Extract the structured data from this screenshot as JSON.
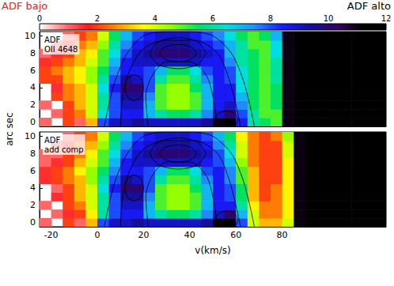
{
  "chart_data": {
    "type": "heatmap",
    "xlabel": "v(km/s)",
    "ylabel": "arc sec",
    "xlim": [
      -25,
      125
    ],
    "xticks": [
      -20,
      0,
      20,
      40,
      60,
      80
    ],
    "ylim": [
      -0.5,
      10.5
    ],
    "yticks": [
      0,
      2,
      4,
      6,
      8,
      10
    ],
    "grid": false,
    "colorbar": {
      "lim": [
        0,
        12
      ],
      "ticks": [
        0,
        2,
        4,
        6,
        8,
        10,
        12
      ],
      "low_label": "ADF bajo",
      "high_label": "ADF alto"
    },
    "x": [
      -22.5,
      -17.5,
      -12.5,
      -7.5,
      -2.5,
      2.5,
      7.5,
      12.5,
      17.5,
      22.5,
      27.5,
      32.5,
      37.5,
      42.5,
      47.5,
      52.5,
      57.5,
      62.5,
      67.5,
      72.5,
      77.5,
      82.5,
      87.5,
      92.5,
      97.5,
      102.5,
      107.5,
      112.5,
      117.5,
      122.5
    ],
    "y": [
      0,
      1,
      2,
      3,
      4,
      5,
      6,
      7,
      8,
      9,
      10
    ],
    "contours": [
      {
        "x": [
          3,
          5,
          8,
          13,
          20,
          30,
          40,
          50,
          58,
          63,
          66,
          68
        ],
        "y": [
          -0.5,
          2,
          5,
          8,
          10,
          10.5,
          10.5,
          10,
          8,
          5,
          2,
          -0.5
        ]
      },
      {
        "x": [
          10,
          11,
          14,
          20,
          30,
          42,
          52,
          57,
          60,
          62
        ],
        "y": [
          -0.5,
          3,
          6,
          8.5,
          9.5,
          9.5,
          8,
          5,
          2,
          -0.5
        ]
      },
      {
        "x": [
          22,
          21,
          24,
          30,
          40,
          47,
          50,
          52
        ],
        "y": [
          -0.5,
          3,
          5.5,
          7,
          7,
          5.5,
          3,
          -0.5
        ]
      },
      {
        "x": [
          20,
          18.8,
          16,
          13.2,
          12,
          13.2,
          16,
          18.8,
          20
        ],
        "y": [
          4,
          5.1,
          5.5,
          5.1,
          4,
          2.9,
          2.5,
          2.9,
          4
        ]
      },
      {
        "x": [
          47,
          43.5,
          35,
          26.5,
          23,
          26.5,
          35,
          43.5,
          47
        ],
        "y": [
          8,
          9.3,
          9.8,
          9.3,
          8,
          6.7,
          6.2,
          6.7,
          8
        ]
      },
      {
        "x": [
          43,
          40.7,
          35,
          29.3,
          27,
          29.3,
          35,
          40.7,
          43
        ],
        "y": [
          8,
          8.7,
          9,
          8.7,
          8,
          7.3,
          7,
          7.3,
          8
        ]
      },
      {
        "x": [
          61,
          59.5,
          56,
          52.5,
          51,
          52.5,
          56,
          59.5,
          61
        ],
        "y": [
          0.3,
          1,
          1.3,
          1,
          0.3,
          -0.4,
          -0.5,
          -0.4,
          0.3
        ]
      }
    ],
    "panels": [
      {
        "annotations": [
          "ADF",
          "OII 4648"
        ],
        "values": [
          [
            1,
            null,
            2,
            1,
            3,
            8,
            9,
            9,
            9.5,
            9,
            9,
            9,
            9,
            9,
            9.5,
            11,
            11.5,
            8.5,
            6,
            5.5,
            5,
            11,
            12,
            12,
            12,
            12,
            12,
            12,
            12,
            12
          ],
          [
            null,
            1,
            2,
            2.5,
            4,
            6.5,
            8,
            8.5,
            8.5,
            7,
            6,
            5.5,
            5.5,
            6,
            7.5,
            9,
            10,
            8,
            6,
            5,
            5,
            11,
            12,
            12,
            12,
            12,
            12,
            12,
            12,
            12
          ],
          [
            1,
            null,
            2,
            3,
            4,
            6,
            8,
            9,
            9,
            7,
            5,
            4.5,
            4.5,
            5,
            7,
            8.5,
            9,
            7.5,
            5.5,
            5,
            5.5,
            11,
            12,
            12,
            12,
            12,
            12,
            12,
            12,
            12
          ],
          [
            null,
            2,
            2.5,
            3,
            4,
            6,
            8,
            9.5,
            9.5,
            7.5,
            5,
            4.5,
            4.5,
            5,
            7,
            8.5,
            8.5,
            7,
            5.5,
            5,
            5.5,
            11,
            12,
            12,
            12,
            12,
            12,
            12,
            12,
            12
          ],
          [
            null,
            1.5,
            2.5,
            3,
            4,
            6.5,
            8.5,
            10,
            10,
            8,
            5,
            4.5,
            4.5,
            5.5,
            7,
            8.5,
            8.5,
            6.5,
            5.5,
            5,
            5.5,
            11,
            12,
            12,
            12,
            12,
            12,
            12,
            12,
            12
          ],
          [
            2,
            2,
            3,
            3.5,
            4.5,
            6,
            8,
            9.5,
            9,
            8,
            6,
            5,
            5,
            6,
            7.5,
            8.5,
            8,
            6.5,
            5.5,
            5,
            6,
            11,
            12,
            12,
            12,
            12,
            12,
            12,
            12,
            12
          ],
          [
            2,
            2.5,
            3,
            3.5,
            4.5,
            5.5,
            7.5,
            8.5,
            8.5,
            8,
            7,
            5.5,
            5.5,
            6.5,
            8,
            8.5,
            8,
            6.5,
            5.5,
            5,
            6,
            11,
            12,
            12,
            12,
            12,
            12,
            12,
            12,
            12
          ],
          [
            1.5,
            2,
            2.5,
            3,
            4,
            5,
            7,
            8.5,
            9,
            9,
            9,
            9,
            9,
            9,
            8.5,
            8.5,
            7.5,
            6,
            5.5,
            5,
            6,
            11,
            12,
            12,
            12,
            12,
            12,
            12,
            12,
            12
          ],
          [
            1,
            1.5,
            2,
            3,
            3.5,
            5,
            6.5,
            8,
            9,
            9.5,
            10,
            10,
            10,
            9.5,
            9,
            8.5,
            7,
            6,
            5.5,
            5,
            6.5,
            11,
            12,
            12,
            12,
            12,
            12,
            12,
            12,
            12
          ],
          [
            null,
            1,
            1.5,
            2.5,
            3,
            4.5,
            6,
            7.5,
            8.5,
            9,
            9.5,
            9.5,
            9.5,
            9,
            8.5,
            8,
            7,
            6,
            5,
            5,
            6.5,
            11,
            12,
            12,
            12,
            12,
            12,
            12,
            12,
            12
          ],
          [
            null,
            null,
            1,
            2,
            2.5,
            4,
            5.5,
            7,
            8,
            8.5,
            9,
            9,
            9,
            8.5,
            8,
            7.5,
            6.5,
            5.5,
            5,
            5.5,
            7,
            11,
            12,
            12,
            12,
            12,
            12,
            12,
            12,
            12
          ]
        ]
      },
      {
        "annotations": [
          "ADF",
          "add comp"
        ],
        "values": [
          [
            1,
            null,
            2,
            1,
            3,
            8,
            9,
            9,
            9.5,
            9,
            9,
            9,
            9,
            9,
            9.5,
            11,
            11.5,
            8,
            4,
            3,
            3,
            4,
            11,
            12,
            12,
            12,
            12,
            12,
            12,
            12
          ],
          [
            null,
            1,
            1.5,
            2,
            3.5,
            6,
            8,
            8.5,
            8.5,
            7,
            6,
            5.5,
            5.5,
            6,
            7.5,
            9,
            10,
            7,
            4,
            2.5,
            2.5,
            3.5,
            11,
            12,
            12,
            12,
            12,
            12,
            12,
            12
          ],
          [
            1,
            null,
            2,
            2.5,
            4,
            6,
            8,
            9,
            9,
            7,
            5,
            4.5,
            4.5,
            5,
            7,
            8.5,
            8.5,
            6,
            3.5,
            2.5,
            2.5,
            3.5,
            11,
            12,
            12,
            12,
            12,
            12,
            12,
            12
          ],
          [
            null,
            1.5,
            2,
            3,
            4,
            6,
            8,
            9.5,
            9.5,
            7.5,
            5,
            4.5,
            4.5,
            5,
            7,
            8.5,
            8,
            5.5,
            3,
            2,
            2.5,
            3.5,
            11,
            12,
            12,
            12,
            12,
            12,
            12,
            12
          ],
          [
            null,
            1,
            2,
            3,
            4,
            6.5,
            8.5,
            10,
            10,
            8,
            5,
            4.5,
            4.5,
            5.5,
            7,
            8.5,
            8,
            5.5,
            3,
            2,
            2.5,
            3.5,
            11,
            12,
            12,
            12,
            12,
            12,
            12,
            12
          ],
          [
            1.5,
            2,
            2.5,
            3,
            4.5,
            6,
            8,
            9.5,
            9,
            8,
            6,
            5,
            5,
            6,
            7.5,
            8.5,
            7.5,
            5,
            3,
            2,
            2,
            3.5,
            11,
            12,
            12,
            12,
            12,
            12,
            12,
            12
          ],
          [
            1.5,
            2,
            2.5,
            3.5,
            4.5,
            5.5,
            7.5,
            8.5,
            8.5,
            8,
            7,
            5.5,
            5.5,
            6.5,
            8,
            8.5,
            7.5,
            5,
            3,
            2,
            2,
            3.5,
            11,
            12,
            12,
            12,
            12,
            12,
            12,
            12
          ],
          [
            1,
            1.5,
            2,
            3,
            4,
            5,
            7,
            8.5,
            9,
            9,
            9,
            9,
            9,
            9,
            8.5,
            8,
            7,
            4.5,
            2.5,
            2,
            2,
            3.5,
            11,
            12,
            12,
            12,
            12,
            12,
            12,
            12
          ],
          [
            1,
            1,
            2,
            2.5,
            3.5,
            5,
            6.5,
            8,
            9,
            9.5,
            10,
            10,
            10,
            9.5,
            9,
            8,
            6.5,
            4,
            2.5,
            2,
            2,
            4,
            11,
            12,
            12,
            12,
            12,
            12,
            12,
            12
          ],
          [
            null,
            1,
            1.5,
            2.5,
            3,
            4.5,
            6,
            7.5,
            8.5,
            9,
            9.5,
            9.5,
            9.5,
            9,
            8.5,
            7.5,
            6,
            4,
            2.5,
            2,
            2,
            4,
            11,
            12,
            12,
            12,
            12,
            12,
            12,
            12
          ],
          [
            null,
            null,
            1,
            2,
            2.5,
            4,
            5.5,
            7,
            8,
            8.5,
            9,
            9,
            9,
            8.5,
            8,
            7,
            5.5,
            3.5,
            2.5,
            2,
            2.5,
            4.5,
            11,
            12,
            12,
            12,
            12,
            12,
            12,
            12
          ]
        ]
      }
    ]
  }
}
